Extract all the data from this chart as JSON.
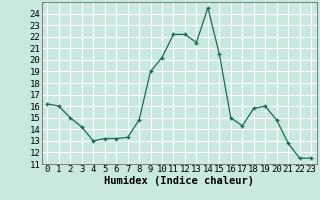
{
  "x": [
    0,
    1,
    2,
    3,
    4,
    5,
    6,
    7,
    8,
    9,
    10,
    11,
    12,
    13,
    14,
    15,
    16,
    17,
    18,
    19,
    20,
    21,
    22,
    23
  ],
  "y": [
    16.2,
    16.0,
    15.0,
    14.2,
    13.0,
    13.2,
    13.2,
    13.3,
    14.8,
    19.0,
    20.2,
    22.2,
    22.2,
    21.5,
    24.5,
    20.5,
    15.0,
    14.3,
    15.8,
    16.0,
    14.8,
    12.8,
    11.5,
    11.5
  ],
  "xlabel": "Humidex (Indice chaleur)",
  "ylim": [
    11,
    25
  ],
  "xlim": [
    -0.5,
    23.5
  ],
  "yticks": [
    11,
    12,
    13,
    14,
    15,
    16,
    17,
    18,
    19,
    20,
    21,
    22,
    23,
    24
  ],
  "xticks": [
    0,
    1,
    2,
    3,
    4,
    5,
    6,
    7,
    8,
    9,
    10,
    11,
    12,
    13,
    14,
    15,
    16,
    17,
    18,
    19,
    20,
    21,
    22,
    23
  ],
  "line_color": "#1a6b5a",
  "marker": "+",
  "bg_color": "#c8e8e0",
  "grid_color": "#ffffff",
  "tick_fontsize": 6.5,
  "label_fontsize": 7.5
}
